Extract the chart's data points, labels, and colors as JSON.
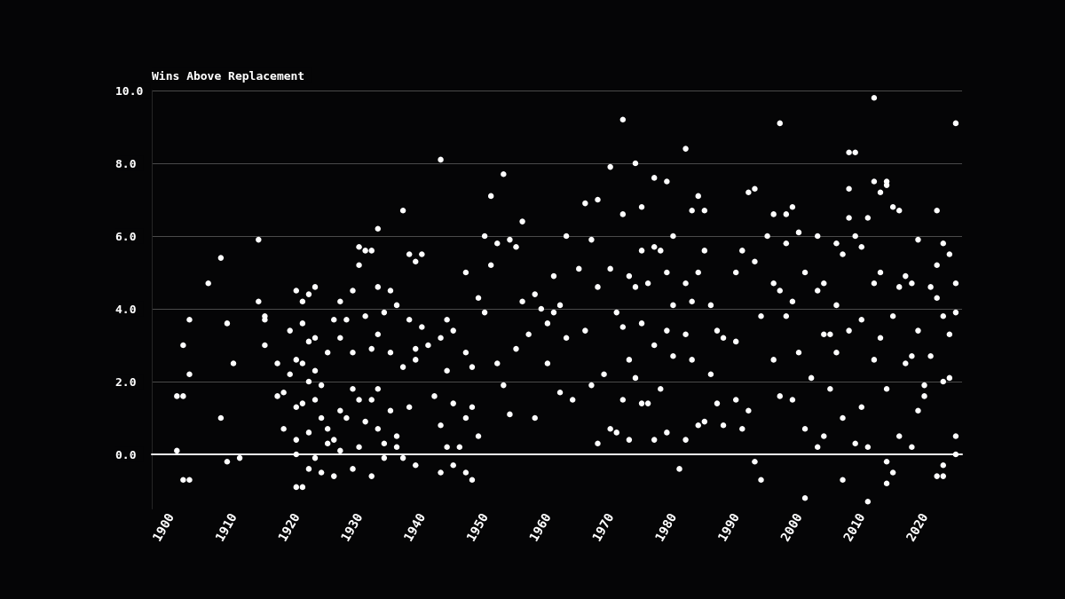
{
  "chart_data": {
    "type": "scatter",
    "ylabel": "Wins Above Replacement",
    "xlim": [
      1897,
      2026
    ],
    "xticks": [
      1900,
      1910,
      1920,
      1930,
      1940,
      1950,
      1960,
      1970,
      1980,
      1990,
      2000,
      2010,
      2020
    ],
    "ylim": [
      -1.5,
      10
    ],
    "yticks": [
      {
        "value": 0,
        "label": "0.0"
      },
      {
        "value": 2,
        "label": "2.0"
      },
      {
        "value": 4,
        "label": "4.0"
      },
      {
        "value": 6,
        "label": "6.0"
      },
      {
        "value": 8,
        "label": "8.0"
      },
      {
        "value": 10,
        "label": "10.0"
      }
    ],
    "grid": "y",
    "marker": "circle",
    "series": [
      {
        "color": "#ffffff",
        "x": [
          1901,
          1901,
          1902,
          1902,
          1902,
          1903,
          1903,
          1903,
          1906,
          1908,
          1908,
          1909,
          1909,
          1910,
          1911,
          1914,
          1914,
          1915,
          1915,
          1915,
          1917,
          1917,
          1918,
          1918,
          1919,
          1919,
          1920,
          1920,
          1920,
          1920,
          1920,
          1920,
          1921,
          1921,
          1921,
          1921,
          1921,
          1922,
          1922,
          1922,
          1922,
          1922,
          1923,
          1923,
          1923,
          1923,
          1923,
          1924,
          1924,
          1924,
          1925,
          1925,
          1925,
          1926,
          1926,
          1926,
          1927,
          1927,
          1927,
          1927,
          1928,
          1928,
          1929,
          1929,
          1929,
          1929,
          1930,
          1930,
          1930,
          1930,
          1931,
          1932,
          1931,
          1931,
          1932,
          1932,
          1932,
          1933,
          1933,
          1933,
          1933,
          1933,
          1934,
          1934,
          1934,
          1935,
          1935,
          1935,
          1936,
          1936,
          1936,
          1937,
          1937,
          1937,
          1938,
          1938,
          1938,
          1939,
          1939,
          1939,
          1939,
          1940,
          1940,
          1941,
          1942,
          1943,
          1943,
          1943,
          1943,
          1944,
          1944,
          1944,
          1945,
          1945,
          1945,
          1946,
          1947,
          1947,
          1947,
          1947,
          1948,
          1948,
          1948,
          1949,
          1949,
          1950,
          1950,
          1951,
          1951,
          1952,
          1952,
          1953,
          1953,
          1954,
          1954,
          1955,
          1955,
          1956,
          1956,
          1957,
          1958,
          1958,
          1959,
          1960,
          1960,
          1961,
          1961,
          1962,
          1962,
          1963,
          1963,
          1964,
          1965,
          1966,
          1966,
          1967,
          1967,
          1968,
          1968,
          1968,
          1969,
          1970,
          1970,
          1970,
          1971,
          1971,
          1972,
          1972,
          1972,
          1972,
          1973,
          1973,
          1973,
          1974,
          1974,
          1974,
          1975,
          1975,
          1975,
          1975,
          1976,
          1976,
          1977,
          1977,
          1977,
          1977,
          1978,
          1978,
          1979,
          1979,
          1979,
          1979,
          1980,
          1980,
          1980,
          1981,
          1982,
          1982,
          1982,
          1982,
          1983,
          1983,
          1983,
          1984,
          1984,
          1984,
          1985,
          1985,
          1985,
          1986,
          1986,
          1987,
          1987,
          1988,
          1988,
          1990,
          1990,
          1990,
          1991,
          1991,
          1992,
          1992,
          1993,
          1993,
          1993,
          1994,
          1994,
          1995,
          1996,
          1996,
          1996,
          1997,
          1997,
          1997,
          1998,
          1998,
          1998,
          1999,
          1999,
          1999,
          2000,
          2000,
          2001,
          2001,
          2001,
          2002,
          2003,
          2003,
          2003,
          2004,
          2004,
          2004,
          2005,
          2005,
          2006,
          2006,
          2006,
          2007,
          2007,
          2007,
          2008,
          2009,
          2008,
          2008,
          2008,
          2009,
          2009,
          2010,
          2010,
          2010,
          2011,
          2011,
          2011,
          2012,
          2012,
          2012,
          2012,
          2013,
          2013,
          2013,
          2014,
          2014,
          2014,
          2014,
          2014,
          2015,
          2015,
          2015,
          2016,
          2016,
          2016,
          2017,
          2017,
          2018,
          2018,
          2018,
          2019,
          2019,
          2019,
          2020,
          2020,
          2021,
          2021,
          2022,
          2022,
          2022,
          2022,
          2023,
          2023,
          2023,
          2023,
          2023,
          2024,
          2024,
          2024,
          2025,
          2025,
          2025,
          2025,
          2025
        ],
        "values": [
          0.1,
          1.6,
          1.6,
          3.0,
          -0.7,
          3.7,
          2.2,
          -0.7,
          4.7,
          5.4,
          1.0,
          3.6,
          -0.2,
          2.5,
          -0.1,
          5.9,
          4.2,
          3.8,
          3.7,
          3.0,
          2.5,
          1.6,
          1.7,
          0.7,
          3.4,
          2.2,
          4.5,
          2.6,
          1.3,
          0.4,
          0.0,
          -0.9,
          -0.9,
          4.2,
          3.6,
          2.5,
          1.4,
          4.4,
          3.1,
          2.0,
          0.6,
          -0.4,
          4.6,
          3.2,
          2.3,
          1.5,
          -0.1,
          1.9,
          1.0,
          -0.5,
          2.8,
          0.7,
          0.3,
          3.7,
          0.4,
          -0.6,
          4.2,
          3.2,
          1.2,
          0.1,
          3.7,
          1.0,
          4.5,
          2.8,
          1.8,
          -0.4,
          5.7,
          5.2,
          1.5,
          0.2,
          5.6,
          5.6,
          3.8,
          0.9,
          2.9,
          -0.6,
          1.5,
          6.2,
          4.6,
          3.3,
          1.8,
          0.7,
          3.9,
          -0.1,
          0.3,
          4.5,
          2.8,
          1.2,
          4.1,
          0.5,
          0.2,
          6.7,
          2.4,
          -0.1,
          5.5,
          3.7,
          1.3,
          5.3,
          2.9,
          -0.3,
          2.6,
          5.5,
          3.5,
          3.0,
          1.6,
          8.1,
          3.2,
          0.8,
          -0.5,
          3.7,
          2.3,
          0.2,
          3.4,
          1.4,
          -0.3,
          0.2,
          5.0,
          2.8,
          1.0,
          -0.5,
          -0.7,
          2.4,
          1.3,
          4.3,
          0.5,
          6.0,
          3.9,
          7.1,
          5.2,
          5.8,
          2.5,
          7.7,
          1.9,
          5.9,
          1.1,
          5.7,
          2.9,
          6.4,
          4.2,
          3.3,
          4.4,
          1.0,
          4.0,
          3.6,
          2.5,
          4.9,
          3.9,
          4.1,
          1.7,
          6.0,
          3.2,
          1.5,
          5.1,
          6.9,
          3.4,
          5.9,
          1.9,
          7.0,
          4.6,
          0.3,
          2.2,
          7.9,
          5.1,
          0.7,
          3.9,
          0.6,
          9.2,
          6.6,
          3.5,
          1.5,
          4.9,
          2.6,
          0.4,
          8.0,
          4.6,
          2.1,
          6.8,
          5.6,
          3.6,
          1.4,
          4.7,
          1.4,
          7.6,
          5.7,
          3.0,
          0.4,
          5.6,
          1.8,
          7.5,
          5.0,
          3.4,
          0.6,
          6.0,
          4.1,
          2.7,
          -0.4,
          8.4,
          4.7,
          3.3,
          0.4,
          6.7,
          4.2,
          2.6,
          7.1,
          5.0,
          0.8,
          5.6,
          6.7,
          0.9,
          4.1,
          2.2,
          3.4,
          1.4,
          3.2,
          0.8,
          5.0,
          3.1,
          1.5,
          5.6,
          0.7,
          7.2,
          1.2,
          7.3,
          5.3,
          -0.2,
          3.8,
          -0.7,
          6.0,
          6.6,
          4.7,
          2.6,
          9.1,
          4.5,
          1.6,
          6.6,
          5.8,
          3.8,
          6.8,
          4.2,
          1.5,
          6.1,
          2.8,
          5.0,
          0.7,
          -1.2,
          2.1,
          6.0,
          4.5,
          0.2,
          4.7,
          3.3,
          0.5,
          3.3,
          1.8,
          5.8,
          4.1,
          2.8,
          5.5,
          1.0,
          -0.7,
          8.3,
          8.3,
          7.3,
          6.5,
          3.4,
          6.0,
          0.3,
          5.7,
          3.7,
          1.3,
          6.5,
          0.2,
          -1.3,
          9.8,
          7.5,
          4.7,
          2.6,
          7.2,
          5.0,
          3.2,
          7.5,
          7.4,
          1.8,
          -0.2,
          -0.8,
          6.8,
          3.8,
          -0.5,
          6.7,
          4.6,
          0.5,
          4.9,
          2.5,
          4.7,
          2.7,
          0.2,
          5.9,
          3.4,
          1.2,
          1.9,
          1.6,
          4.6,
          2.7,
          6.7,
          5.2,
          4.3,
          -0.6,
          5.8,
          3.8,
          2.0,
          -0.3,
          -0.6,
          5.5,
          3.3,
          2.1,
          9.1,
          4.7,
          3.9,
          0.5,
          0.0
        ]
      }
    ]
  }
}
